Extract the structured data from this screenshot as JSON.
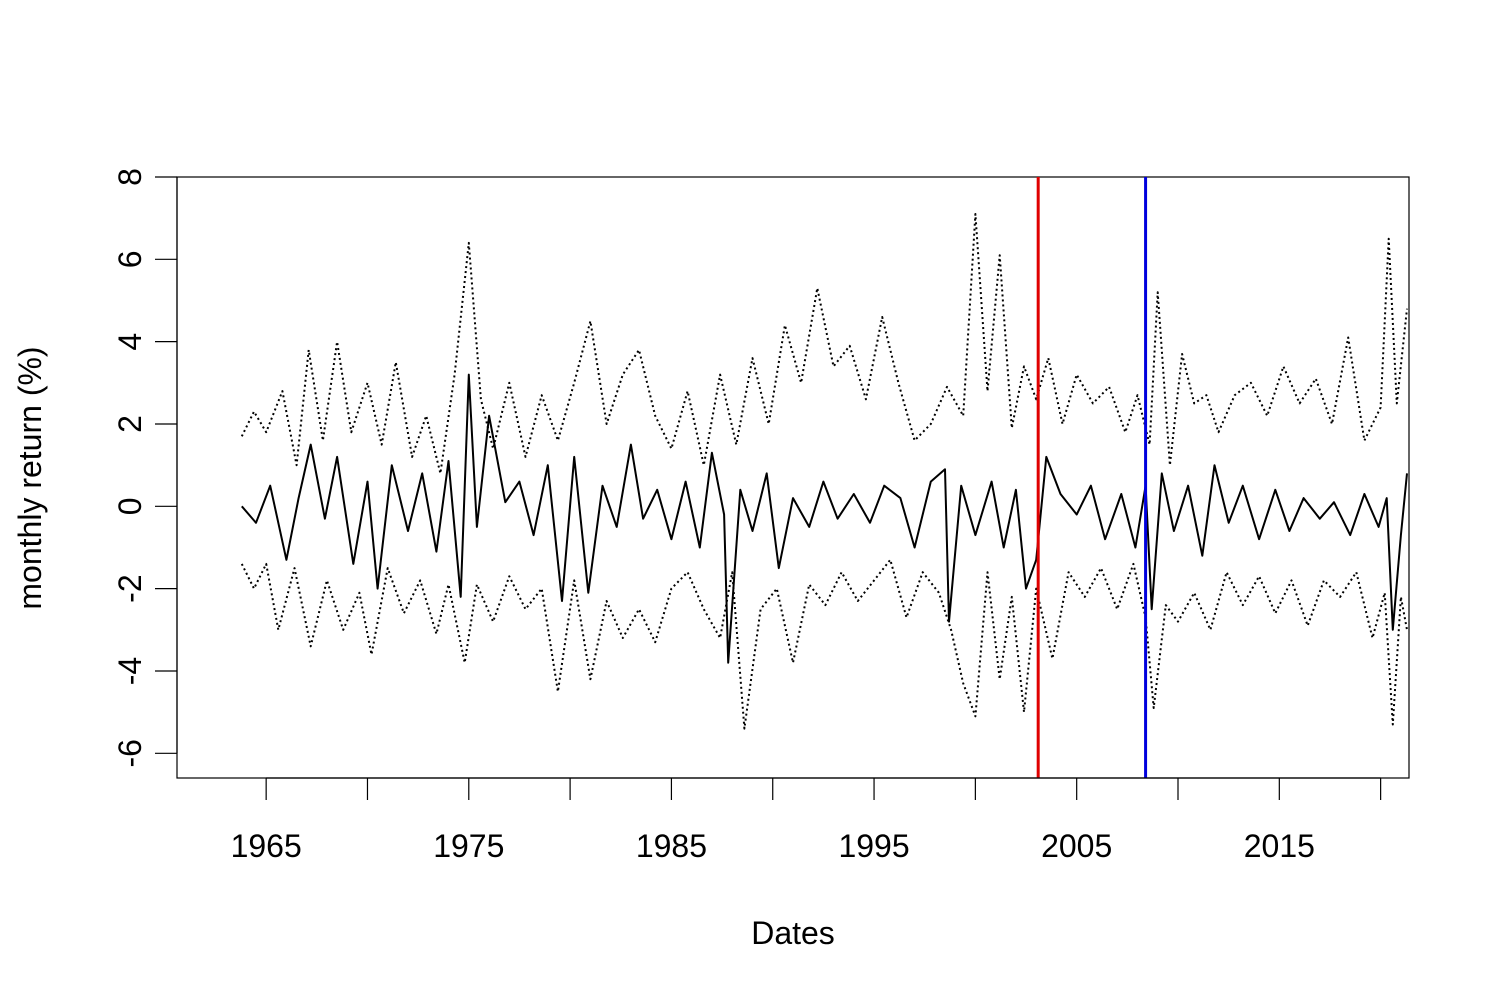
{
  "chart_data": {
    "type": "line",
    "title": "",
    "xlabel": "Dates",
    "ylabel": "monthly return (%)",
    "xlim": [
      1960.6,
      2021.4
    ],
    "ylim": [
      -6.6,
      8.0
    ],
    "x_ticks": [
      {
        "value": 1965,
        "label": "1965"
      },
      {
        "value": 1970,
        "label": ""
      },
      {
        "value": 1975,
        "label": "1975"
      },
      {
        "value": 1980,
        "label": ""
      },
      {
        "value": 1985,
        "label": "1985"
      },
      {
        "value": 1990,
        "label": ""
      },
      {
        "value": 1995,
        "label": "1995"
      },
      {
        "value": 2000,
        "label": ""
      },
      {
        "value": 2005,
        "label": "2005"
      },
      {
        "value": 2010,
        "label": ""
      },
      {
        "value": 2015,
        "label": "2015"
      },
      {
        "value": 2020,
        "label": ""
      }
    ],
    "y_ticks": [
      {
        "value": -6,
        "label": "-6"
      },
      {
        "value": -4,
        "label": "-4"
      },
      {
        "value": -2,
        "label": "-2"
      },
      {
        "value": 0,
        "label": "0"
      },
      {
        "value": 2,
        "label": "2"
      },
      {
        "value": 4,
        "label": "4"
      },
      {
        "value": 6,
        "label": "6"
      },
      {
        "value": 8,
        "label": "8"
      }
    ],
    "vlines": [
      {
        "x": 2003.1,
        "color": "#e00000"
      },
      {
        "x": 2008.4,
        "color": "#0000dd"
      }
    ],
    "series": [
      {
        "style": "solid",
        "color": "#000000",
        "x": [
          1963.8,
          1964.5,
          1965.2,
          1966.0,
          1966.6,
          1967.2,
          1967.9,
          1968.5,
          1969.3,
          1970.0,
          1970.5,
          1971.2,
          1972.0,
          1972.7,
          1973.4,
          1974.0,
          1974.6,
          1975.0,
          1975.4,
          1976.0,
          1976.8,
          1977.5,
          1978.2,
          1978.9,
          1979.6,
          1980.2,
          1980.9,
          1981.6,
          1982.3,
          1983.0,
          1983.6,
          1984.3,
          1985.0,
          1985.7,
          1986.4,
          1987.0,
          1987.6,
          1987.8,
          1988.4,
          1989.0,
          1989.7,
          1990.3,
          1991.0,
          1991.8,
          1992.5,
          1993.2,
          1994.0,
          1994.8,
          1995.5,
          1996.3,
          1997.0,
          1997.8,
          1998.5,
          1998.7,
          1999.3,
          2000.0,
          2000.8,
          2001.4,
          2002.0,
          2002.5,
          2003.0,
          2003.5,
          2004.2,
          2005.0,
          2005.7,
          2006.4,
          2007.2,
          2007.9,
          2008.4,
          2008.7,
          2009.2,
          2009.8,
          2010.5,
          2011.2,
          2011.8,
          2012.5,
          2013.2,
          2014.0,
          2014.8,
          2015.5,
          2016.2,
          2017.0,
          2017.7,
          2018.5,
          2019.2,
          2019.9,
          2020.3,
          2020.6,
          2021.0,
          2021.3
        ],
        "y": [
          0.0,
          -0.4,
          0.5,
          -1.3,
          0.2,
          1.5,
          -0.3,
          1.2,
          -1.4,
          0.6,
          -2.0,
          1.0,
          -0.6,
          0.8,
          -1.1,
          1.1,
          -2.2,
          3.2,
          -0.5,
          2.2,
          0.1,
          0.6,
          -0.7,
          1.0,
          -2.3,
          1.2,
          -2.1,
          0.5,
          -0.5,
          1.5,
          -0.3,
          0.4,
          -0.8,
          0.6,
          -1.0,
          1.3,
          -0.2,
          -3.8,
          0.4,
          -0.6,
          0.8,
          -1.5,
          0.2,
          -0.5,
          0.6,
          -0.3,
          0.3,
          -0.4,
          0.5,
          0.2,
          -1.0,
          0.6,
          0.9,
          -2.8,
          0.5,
          -0.7,
          0.6,
          -1.0,
          0.4,
          -2.0,
          -1.3,
          1.2,
          0.3,
          -0.2,
          0.5,
          -0.8,
          0.3,
          -1.0,
          0.5,
          -2.5,
          0.8,
          -0.6,
          0.5,
          -1.2,
          1.0,
          -0.4,
          0.5,
          -0.8,
          0.4,
          -0.6,
          0.2,
          -0.3,
          0.1,
          -0.7,
          0.3,
          -0.5,
          0.2,
          -3.0,
          -0.7,
          0.8
        ]
      },
      {
        "style": "dotted",
        "color": "#000000",
        "x": [
          1963.8,
          1964.4,
          1965.0,
          1965.8,
          1966.5,
          1967.1,
          1967.8,
          1968.5,
          1969.2,
          1970.0,
          1970.7,
          1971.4,
          1972.2,
          1972.9,
          1973.6,
          1974.3,
          1975.0,
          1975.6,
          1976.2,
          1977.0,
          1977.8,
          1978.6,
          1979.4,
          1980.2,
          1981.0,
          1981.8,
          1982.6,
          1983.4,
          1984.2,
          1985.0,
          1985.8,
          1986.6,
          1987.4,
          1988.2,
          1989.0,
          1989.8,
          1990.6,
          1991.4,
          1992.2,
          1993.0,
          1993.8,
          1994.6,
          1995.4,
          1996.2,
          1997.0,
          1997.8,
          1998.6,
          1999.4,
          2000.0,
          2000.6,
          2001.2,
          2001.8,
          2002.4,
          2003.0,
          2003.6,
          2004.3,
          2005.0,
          2005.8,
          2006.6,
          2007.4,
          2008.0,
          2008.6,
          2009.0,
          2009.6,
          2010.2,
          2010.8,
          2011.4,
          2012.0,
          2012.8,
          2013.6,
          2014.4,
          2015.2,
          2016.0,
          2016.8,
          2017.6,
          2018.4,
          2019.2,
          2020.0,
          2020.4,
          2020.8,
          2021.3
        ],
        "y": [
          1.7,
          2.3,
          1.8,
          2.8,
          1.0,
          3.8,
          1.6,
          4.0,
          1.8,
          3.0,
          1.5,
          3.5,
          1.2,
          2.2,
          0.8,
          3.2,
          6.4,
          2.6,
          1.4,
          3.0,
          1.2,
          2.7,
          1.6,
          3.0,
          4.5,
          2.0,
          3.2,
          3.8,
          2.2,
          1.4,
          2.8,
          1.0,
          3.2,
          1.5,
          3.6,
          2.0,
          4.4,
          3.0,
          5.3,
          3.4,
          3.9,
          2.6,
          4.6,
          3.0,
          1.6,
          2.0,
          2.9,
          2.2,
          7.1,
          2.8,
          6.1,
          1.9,
          3.4,
          2.6,
          3.6,
          2.0,
          3.2,
          2.5,
          2.9,
          1.8,
          2.7,
          1.5,
          5.2,
          1.0,
          3.7,
          2.5,
          2.7,
          1.8,
          2.7,
          3.0,
          2.2,
          3.4,
          2.5,
          3.1,
          2.0,
          4.1,
          1.6,
          2.4,
          6.5,
          2.5,
          4.8
        ]
      },
      {
        "style": "dotted",
        "color": "#000000",
        "x": [
          1963.8,
          1964.4,
          1965.0,
          1965.6,
          1966.4,
          1967.2,
          1968.0,
          1968.8,
          1969.6,
          1970.2,
          1971.0,
          1971.8,
          1972.6,
          1973.4,
          1974.0,
          1974.8,
          1975.4,
          1976.2,
          1977.0,
          1977.8,
          1978.6,
          1979.4,
          1980.2,
          1981.0,
          1981.8,
          1982.6,
          1983.4,
          1984.2,
          1985.0,
          1985.8,
          1986.6,
          1987.4,
          1988.0,
          1988.6,
          1989.4,
          1990.2,
          1991.0,
          1991.8,
          1992.6,
          1993.4,
          1994.2,
          1995.0,
          1995.8,
          1996.6,
          1997.4,
          1998.2,
          1998.8,
          1999.4,
          2000.0,
          2000.6,
          2001.2,
          2001.8,
          2002.4,
          2003.0,
          2003.8,
          2004.6,
          2005.4,
          2006.2,
          2007.0,
          2007.8,
          2008.4,
          2008.8,
          2009.4,
          2010.0,
          2010.8,
          2011.6,
          2012.4,
          2013.2,
          2014.0,
          2014.8,
          2015.6,
          2016.4,
          2017.2,
          2018.0,
          2018.8,
          2019.6,
          2020.2,
          2020.6,
          2021.0,
          2021.3
        ],
        "y": [
          -1.4,
          -2.0,
          -1.4,
          -3.0,
          -1.5,
          -3.4,
          -1.8,
          -3.0,
          -2.1,
          -3.6,
          -1.5,
          -2.6,
          -1.8,
          -3.1,
          -1.9,
          -3.8,
          -1.9,
          -2.8,
          -1.7,
          -2.5,
          -2.0,
          -4.5,
          -1.8,
          -4.2,
          -2.3,
          -3.2,
          -2.5,
          -3.3,
          -2.0,
          -1.6,
          -2.5,
          -3.2,
          -1.6,
          -5.4,
          -2.5,
          -2.0,
          -3.8,
          -1.9,
          -2.4,
          -1.6,
          -2.3,
          -1.8,
          -1.3,
          -2.7,
          -1.6,
          -2.1,
          -3.0,
          -4.3,
          -5.1,
          -1.6,
          -4.2,
          -2.2,
          -5.0,
          -2.0,
          -3.7,
          -1.6,
          -2.2,
          -1.5,
          -2.5,
          -1.4,
          -2.7,
          -4.9,
          -2.4,
          -2.8,
          -2.1,
          -3.0,
          -1.6,
          -2.4,
          -1.7,
          -2.6,
          -1.8,
          -2.9,
          -1.8,
          -2.2,
          -1.6,
          -3.2,
          -2.1,
          -5.3,
          -2.2,
          -3.0
        ]
      }
    ]
  }
}
